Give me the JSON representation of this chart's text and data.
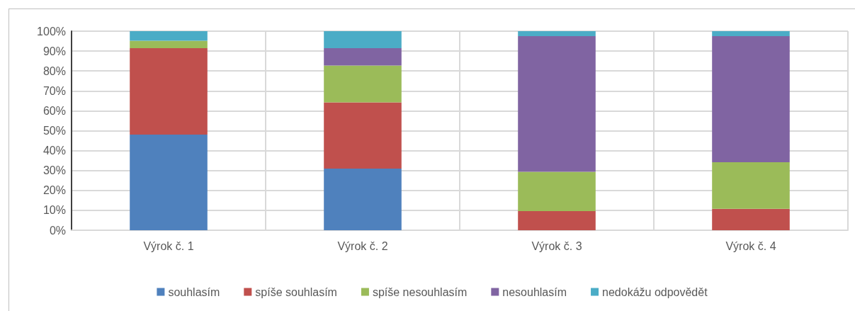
{
  "chart_data": {
    "type": "bar",
    "stacked": true,
    "categories": [
      "Výrok č. 1",
      "Výrok č. 2",
      "Výrok č. 3",
      "Výrok č. 4"
    ],
    "series": [
      {
        "name": "souhlasím",
        "color": "#4f81bd",
        "values": [
          48,
          31,
          0,
          0
        ]
      },
      {
        "name": "spíše souhlasím",
        "color": "#c0504d",
        "values": [
          43.5,
          33.2,
          9.6,
          10.8
        ]
      },
      {
        "name": "spíše nesouhlasím",
        "color": "#9bbb59",
        "values": [
          3.7,
          18.5,
          19.8,
          23.4
        ]
      },
      {
        "name": "nesouhlasím",
        "color": "#8064a2",
        "values": [
          0,
          8.8,
          68.1,
          63.3
        ]
      },
      {
        "name": "nedokážu odpovědět",
        "color": "#4bacc6",
        "values": [
          4.8,
          8.5,
          2.5,
          2.5
        ]
      }
    ],
    "ylim": [
      0,
      100
    ],
    "yticks": [
      {
        "value": 0,
        "label": "0%"
      },
      {
        "value": 10,
        "label": "10%"
      },
      {
        "value": 20,
        "label": "20%"
      },
      {
        "value": 30,
        "label": "30%"
      },
      {
        "value": 40,
        "label": "40%"
      },
      {
        "value": 50,
        "label": "50%"
      },
      {
        "value": 60,
        "label": "60%"
      },
      {
        "value": 70,
        "label": "70%"
      },
      {
        "value": 80,
        "label": "80%"
      },
      {
        "value": 90,
        "label": "90%"
      },
      {
        "value": 100,
        "label": "100%"
      }
    ],
    "grid": true,
    "legend": "bottom"
  }
}
